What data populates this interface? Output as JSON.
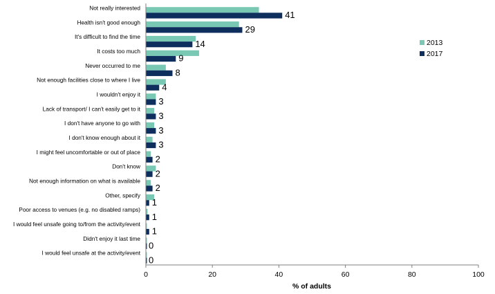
{
  "chart_data": {
    "type": "bar",
    "orientation": "horizontal",
    "xlabel": "% of adults",
    "xlim": [
      0,
      100
    ],
    "xticks": [
      0,
      20,
      40,
      60,
      80,
      100
    ],
    "grid": false,
    "legend_position": "right",
    "categories": [
      "Not really interested",
      "Health isn't good enough",
      "It's difficult to find the time",
      "It costs too much",
      "Never occurred to me",
      "Not enough facilities close to where I live",
      "I wouldn't enjoy it",
      "Lack of transport/ I can't easily get to it",
      "I don't have anyone to go with",
      "I don't know enough about it",
      "I might feel uncomfortable or out of place",
      "Don't know",
      "Not enough information on what is available",
      "Other, specify",
      "Poor access to venues (e.g. no disabled ramps)",
      "I would feel unsafe going to/from the activity/event",
      "Didn't enjoy it last time",
      "I would feel unsafe at the activity/event"
    ],
    "series": [
      {
        "name": "2013",
        "color": "#79c8b4",
        "values": [
          34,
          28,
          15,
          16,
          6,
          6,
          3,
          2.5,
          2.5,
          2,
          1.5,
          3,
          1.5,
          2.5,
          0.5,
          0.3,
          0.3,
          0.3
        ]
      },
      {
        "name": "2017",
        "color": "#0e2f5e",
        "values": [
          41,
          29,
          14,
          9,
          8,
          4,
          3,
          3,
          3,
          3,
          2,
          2,
          2,
          1,
          1,
          1,
          0,
          0
        ],
        "data_labels": [
          "41",
          "29",
          "14",
          "9",
          "8",
          "4",
          "3",
          "3",
          "3",
          "3",
          "2",
          "2",
          "2",
          "1",
          "1",
          "1",
          "0",
          "0"
        ]
      }
    ]
  }
}
